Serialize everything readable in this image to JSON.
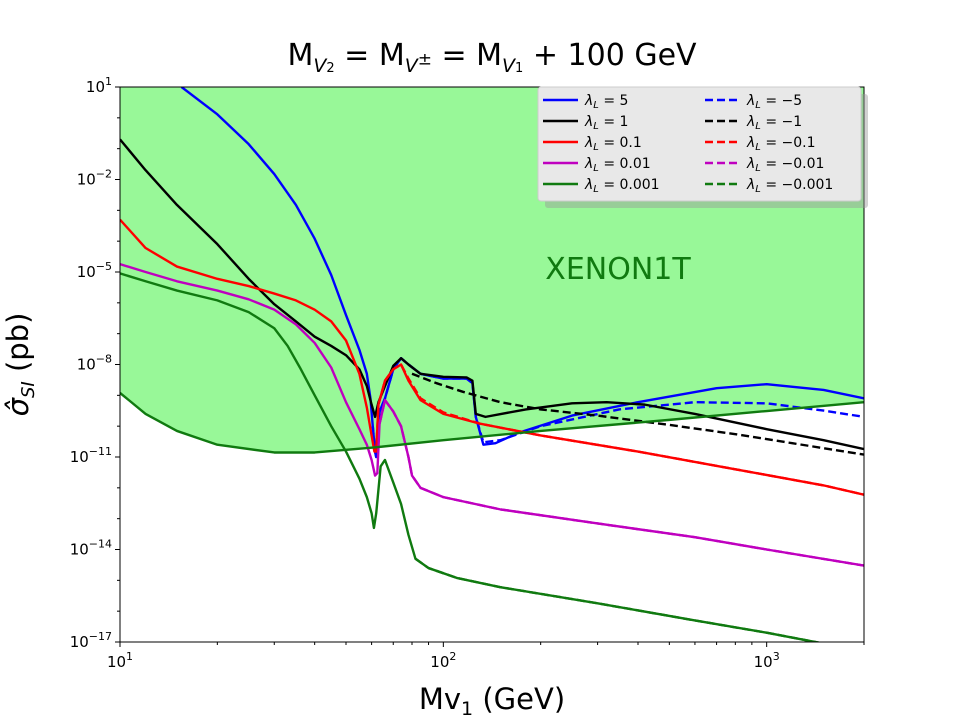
{
  "title": {
    "base": "M",
    "sub1": "V",
    "sub1_index": "2",
    "eq1": " = M",
    "sub2": "V",
    "sup2": "±",
    "eq2": " = M",
    "sub3": "V",
    "sub3_index": "1",
    "tail": " + 100 GeV"
  },
  "chart_data": {
    "type": "line",
    "title": "M_{V_2} = M_{V^±} = M_{V_1} + 100 GeV",
    "xlabel": "Mv",
    "xlabel_sub": "1",
    "xlabel_unit": " (GeV)",
    "ylabel": "σ̂",
    "ylabel_sub": "SI",
    "ylabel_unit": " (pb)",
    "xscale": "log",
    "yscale": "log",
    "xlim": [
      10,
      2000
    ],
    "ylim": [
      1e-17,
      10
    ],
    "x_ticks": [
      {
        "value": 10,
        "base": "10",
        "exp": "1"
      },
      {
        "value": 100,
        "base": "10",
        "exp": "2"
      },
      {
        "value": 1000,
        "base": "10",
        "exp": "3"
      }
    ],
    "y_ticks": [
      {
        "value": 10,
        "base": "10",
        "exp": "1"
      },
      {
        "value": 0.01,
        "base": "10",
        "exp": "−2"
      },
      {
        "value": 1e-05,
        "base": "10",
        "exp": "−5"
      },
      {
        "value": 1e-08,
        "base": "10",
        "exp": "−8"
      },
      {
        "value": 1e-11,
        "base": "10",
        "exp": "−11"
      },
      {
        "value": 1e-14,
        "base": "10",
        "exp": "−14"
      },
      {
        "value": 1e-17,
        "base": "10",
        "exp": "−17"
      }
    ],
    "region_label": "XENON1T",
    "region_color": "#98f898",
    "legend_position": "upper-right",
    "xenon_limit": {
      "color": "#107a10",
      "points": [
        [
          10,
          1.2e-09
        ],
        [
          12,
          2.5e-10
        ],
        [
          15,
          7e-11
        ],
        [
          20,
          2.5e-11
        ],
        [
          30,
          1.4e-11
        ],
        [
          40,
          1.4e-11
        ],
        [
          60,
          2e-11
        ],
        [
          100,
          3.5e-11
        ],
        [
          200,
          7e-11
        ],
        [
          500,
          1.6e-10
        ],
        [
          1000,
          3.1e-10
        ],
        [
          2000,
          6e-10
        ]
      ]
    },
    "series": [
      {
        "name": "λ_L = 5",
        "label_value": "5",
        "color": "#0000ff",
        "dash": false,
        "points": [
          [
            15.5,
            10
          ],
          [
            20,
            1.3
          ],
          [
            25,
            0.14
          ],
          [
            30,
            0.015
          ],
          [
            35,
            0.0015
          ],
          [
            40,
            0.00012
          ],
          [
            45,
            8e-06
          ],
          [
            50,
            4e-07
          ],
          [
            55,
            3e-08
          ],
          [
            58,
            5e-09
          ],
          [
            59.5,
            8e-10
          ],
          [
            60.5,
            1e-10
          ],
          [
            61.5,
            1.5e-11
          ],
          [
            62,
            1e-11
          ],
          [
            62.5,
            5e-11
          ],
          [
            63.5,
            3e-10
          ],
          [
            66,
            8e-10
          ],
          [
            70,
            7e-09
          ],
          [
            74,
            1.6e-08
          ],
          [
            78,
            1e-08
          ],
          [
            85,
            5e-09
          ],
          [
            100,
            3.5e-09
          ],
          [
            118,
            3.5e-09
          ],
          [
            123,
            2.5e-09
          ],
          [
            126,
            2e-10
          ],
          [
            133,
            2.5e-11
          ],
          [
            145,
            2.8e-11
          ],
          [
            170,
            6e-11
          ],
          [
            250,
            2.2e-10
          ],
          [
            400,
            6e-10
          ],
          [
            700,
            1.7e-09
          ],
          [
            1000,
            2.3e-09
          ],
          [
            1500,
            1.5e-09
          ],
          [
            2000,
            8e-10
          ]
        ]
      },
      {
        "name": "λ_L = −5",
        "label_value": "−5",
        "color": "#0000ff",
        "dash": true,
        "points": [
          [
            60.5,
            1e-10
          ],
          [
            61.5,
            1.5e-11
          ],
          [
            62,
            1e-11
          ],
          [
            62.5,
            5e-11
          ],
          [
            63.5,
            3e-10
          ],
          [
            66,
            8e-10
          ],
          [
            70,
            7e-09
          ],
          [
            74,
            1.6e-08
          ],
          [
            78,
            1e-08
          ],
          [
            85,
            5e-09
          ],
          [
            100,
            3.5e-09
          ],
          [
            118,
            3.5e-09
          ],
          [
            123,
            2.5e-09
          ],
          [
            126,
            2e-10
          ],
          [
            133,
            3e-11
          ],
          [
            150,
            3.5e-11
          ],
          [
            200,
            1e-10
          ],
          [
            350,
            3.5e-10
          ],
          [
            600,
            6e-10
          ],
          [
            1000,
            5.5e-10
          ],
          [
            1500,
            3.2e-10
          ],
          [
            2000,
            2e-10
          ]
        ]
      },
      {
        "name": "λ_L = 1",
        "label_value": "1",
        "color": "#000000",
        "dash": false,
        "points": [
          [
            10,
            0.2
          ],
          [
            12,
            0.02
          ],
          [
            15,
            0.0015
          ],
          [
            20,
            8e-05
          ],
          [
            25,
            6e-06
          ],
          [
            30,
            9e-07
          ],
          [
            35,
            2.5e-07
          ],
          [
            40,
            8e-08
          ],
          [
            45,
            4e-08
          ],
          [
            50,
            2e-08
          ],
          [
            55,
            7e-09
          ],
          [
            58,
            2e-09
          ],
          [
            60,
            5e-10
          ],
          [
            61.5,
            2e-10
          ],
          [
            63,
            6e-10
          ],
          [
            66,
            2e-09
          ],
          [
            70,
            9e-09
          ],
          [
            74,
            1.6e-08
          ],
          [
            78,
            1e-08
          ],
          [
            85,
            5e-09
          ],
          [
            100,
            4e-09
          ],
          [
            118,
            3.8e-09
          ],
          [
            123,
            3e-09
          ],
          [
            126,
            2.5e-10
          ],
          [
            135,
            2e-10
          ],
          [
            180,
            3.5e-10
          ],
          [
            250,
            5.5e-10
          ],
          [
            320,
            6e-10
          ],
          [
            420,
            5e-10
          ],
          [
            600,
            2.5e-10
          ],
          [
            1000,
            8e-11
          ],
          [
            1500,
            3.5e-11
          ],
          [
            2000,
            1.8e-11
          ]
        ]
      },
      {
        "name": "λ_L = −1",
        "label_value": "−1",
        "color": "#000000",
        "dash": true,
        "points": [
          [
            80,
            5e-09
          ],
          [
            95,
            2.5e-09
          ],
          [
            115,
            1.3e-09
          ],
          [
            150,
            6e-10
          ],
          [
            200,
            3.5e-10
          ],
          [
            300,
            2.2e-10
          ],
          [
            500,
            1.1e-10
          ],
          [
            800,
            5.5e-11
          ],
          [
            1200,
            2.8e-11
          ],
          [
            2000,
            1.2e-11
          ]
        ]
      },
      {
        "name": "λ_L = 0.1",
        "label_value": "0.1",
        "color": "#ff0000",
        "dash": false,
        "points": [
          [
            10,
            0.0005
          ],
          [
            12,
            6e-05
          ],
          [
            15,
            1.5e-05
          ],
          [
            20,
            6e-06
          ],
          [
            25,
            3.5e-06
          ],
          [
            30,
            2e-06
          ],
          [
            35,
            1.2e-06
          ],
          [
            40,
            6e-07
          ],
          [
            45,
            2.5e-07
          ],
          [
            50,
            6e-08
          ],
          [
            55,
            5e-09
          ],
          [
            58,
            4e-10
          ],
          [
            60,
            5e-11
          ],
          [
            61.2,
            1.5e-11
          ],
          [
            62,
            1.5e-11
          ],
          [
            63,
            5e-10
          ],
          [
            66,
            3e-09
          ],
          [
            70,
            7e-09
          ],
          [
            74,
            1e-08
          ],
          [
            78,
            3e-09
          ],
          [
            85,
            7e-10
          ],
          [
            100,
            2.5e-10
          ],
          [
            130,
            1.2e-10
          ],
          [
            200,
            5e-11
          ],
          [
            400,
            1.5e-11
          ],
          [
            800,
            4e-12
          ],
          [
            1500,
            1.2e-12
          ],
          [
            2000,
            6e-13
          ]
        ]
      },
      {
        "name": "λ_L = −0.1",
        "label_value": "−0.1",
        "color": "#ff0000",
        "dash": true,
        "points": [
          [
            62,
            1.5e-11
          ],
          [
            63,
            5e-10
          ],
          [
            66,
            3e-09
          ],
          [
            70,
            7e-09
          ],
          [
            74,
            1e-08
          ],
          [
            78,
            3.5e-09
          ],
          [
            85,
            8e-10
          ],
          [
            100,
            2.8e-10
          ],
          [
            130,
            1.2e-10
          ],
          [
            200,
            5e-11
          ],
          [
            400,
            1.5e-11
          ],
          [
            800,
            4e-12
          ],
          [
            1500,
            1.2e-12
          ],
          [
            2000,
            6e-13
          ]
        ]
      },
      {
        "name": "λ_L = 0.01",
        "label_value": "0.01",
        "color": "#bf00bf",
        "dash": false,
        "points": [
          [
            10,
            1.8e-05
          ],
          [
            12,
            1e-05
          ],
          [
            15,
            5e-06
          ],
          [
            20,
            2.5e-06
          ],
          [
            25,
            1.3e-06
          ],
          [
            30,
            6e-07
          ],
          [
            35,
            2e-07
          ],
          [
            40,
            5e-08
          ],
          [
            45,
            8e-09
          ],
          [
            50,
            6e-10
          ],
          [
            55,
            8e-11
          ],
          [
            58,
            2.5e-11
          ],
          [
            60,
            8e-12
          ],
          [
            61.5,
            2.5e-12
          ],
          [
            62.5,
            3e-12
          ],
          [
            63.5,
            1.2e-10
          ],
          [
            66,
            7e-10
          ],
          [
            70,
            3e-10
          ],
          [
            74,
            1e-10
          ],
          [
            78,
            1e-11
          ],
          [
            80,
            2.5e-12
          ],
          [
            85,
            1e-12
          ],
          [
            100,
            5e-13
          ],
          [
            150,
            2e-13
          ],
          [
            300,
            7e-14
          ],
          [
            600,
            2.5e-14
          ],
          [
            1000,
            1e-14
          ],
          [
            2000,
            3e-15
          ]
        ]
      },
      {
        "name": "λ_L = −0.01",
        "label_value": "−0.01",
        "color": "#bf00bf",
        "dash": true,
        "points": [
          [
            63.5,
            1.2e-10
          ],
          [
            66,
            7e-10
          ],
          [
            70,
            3e-10
          ],
          [
            74,
            1e-10
          ],
          [
            78,
            1e-11
          ],
          [
            80,
            2.5e-12
          ],
          [
            85,
            1e-12
          ],
          [
            100,
            5e-13
          ],
          [
            150,
            2e-13
          ],
          [
            300,
            7e-14
          ],
          [
            600,
            2.5e-14
          ],
          [
            1000,
            1e-14
          ],
          [
            2000,
            3e-15
          ]
        ]
      },
      {
        "name": "λ_L = 0.001",
        "label_value": "0.001",
        "color": "#107a10",
        "dash": false,
        "points": [
          [
            10,
            9e-06
          ],
          [
            12,
            5e-06
          ],
          [
            15,
            2.5e-06
          ],
          [
            20,
            1.2e-06
          ],
          [
            25,
            5e-07
          ],
          [
            30,
            1.5e-07
          ],
          [
            33,
            4e-08
          ],
          [
            36,
            8e-09
          ],
          [
            40,
            1e-09
          ],
          [
            45,
            1e-10
          ],
          [
            50,
            1.5e-11
          ],
          [
            55,
            2e-12
          ],
          [
            58,
            5e-13
          ],
          [
            60,
            1.5e-13
          ],
          [
            61,
            5e-14
          ],
          [
            62,
            1.5e-13
          ],
          [
            64,
            5e-12
          ],
          [
            66,
            8e-12
          ],
          [
            70,
            1.5e-12
          ],
          [
            74,
            3e-13
          ],
          [
            78,
            3e-14
          ],
          [
            82,
            5e-15
          ],
          [
            90,
            2.5e-15
          ],
          [
            110,
            1.2e-15
          ],
          [
            150,
            6e-16
          ],
          [
            300,
            1.8e-16
          ],
          [
            600,
            5e-17
          ],
          [
            1000,
            2e-17
          ],
          [
            2000,
            5e-18
          ]
        ]
      },
      {
        "name": "λ_L = −0.001",
        "label_value": "−0.001",
        "color": "#107a10",
        "dash": true,
        "points": [
          [
            82,
            5e-15
          ],
          [
            90,
            2.5e-15
          ],
          [
            110,
            1.2e-15
          ],
          [
            150,
            6e-16
          ],
          [
            300,
            1.8e-16
          ],
          [
            600,
            5e-17
          ],
          [
            1000,
            2e-17
          ],
          [
            2000,
            5e-18
          ]
        ]
      }
    ]
  }
}
